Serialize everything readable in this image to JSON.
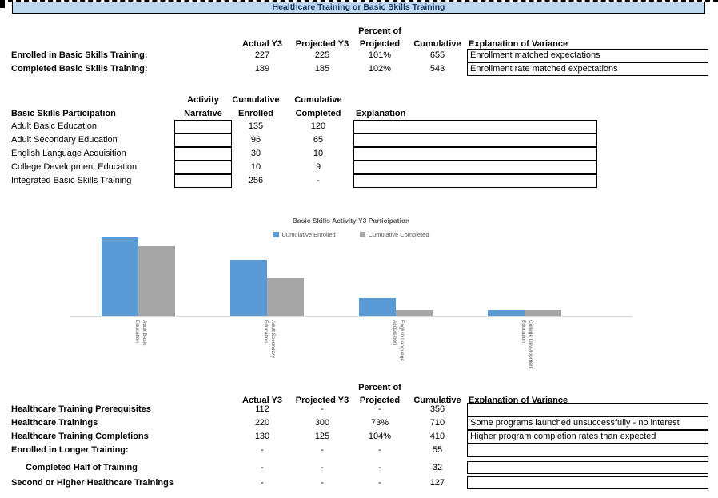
{
  "title_bar": {
    "text": "Healthcare Training or Basic Skills Training",
    "bg": "#BDD7EE",
    "text_color": "#17375E"
  },
  "top_table": {
    "headers": {
      "percent_line1": "Percent of",
      "actual": "Actual Y3",
      "projected": "Projected Y3",
      "percent_line2": "Projected",
      "cumulative": "Cumulative",
      "explanation": "Explanation of Variance"
    },
    "rows": [
      {
        "label": "Enrolled in Basic Skills Training:",
        "actual": "227",
        "projected": "225",
        "percent": "101%",
        "cumulative": "655",
        "explanation": "Enrollment matched expectations"
      },
      {
        "label": "Completed Basic Skills Training:",
        "actual": "189",
        "projected": "185",
        "percent": "102%",
        "cumulative": "543",
        "explanation": "Enrollment rate matched expectations"
      }
    ]
  },
  "participation_table": {
    "title": "Basic Skills Participation",
    "headers": {
      "activity1": "Activity",
      "activity2": "Narrative",
      "enrolled1": "Cumulative",
      "enrolled2": "Enrolled",
      "completed1": "Cumulative",
      "completed2": "Completed",
      "explanation": "Explanation"
    },
    "rows": [
      {
        "label": "Adult Basic Education",
        "narrative": "",
        "enrolled": "135",
        "completed": "120",
        "explanation": ""
      },
      {
        "label": "Adult Secondary Education",
        "narrative": "",
        "enrolled": "96",
        "completed": "65",
        "explanation": ""
      },
      {
        "label": "English Language Acquisition",
        "narrative": "",
        "enrolled": "30",
        "completed": "10",
        "explanation": ""
      },
      {
        "label": "College Development Education",
        "narrative": "",
        "enrolled": "10",
        "completed": "9",
        "explanation": ""
      },
      {
        "label": "Integrated Basic Skills Training",
        "narrative": "",
        "enrolled": "256",
        "completed": "-",
        "explanation": ""
      }
    ]
  },
  "chart_data": {
    "type": "bar",
    "title": "Basic Skills Activity Y3 Participation",
    "categories": [
      "Adult Basic Education",
      "Adult Secondary Education",
      "English Language Acquisition",
      "College Development Education"
    ],
    "category_label_lines": [
      [
        "Adult Basic",
        "Education"
      ],
      [
        "Adult Secondary",
        "Education"
      ],
      [
        "English Language",
        "Acquisition"
      ],
      [
        "College Development",
        "Education"
      ]
    ],
    "series": [
      {
        "name": "Cumulative Enrolled",
        "color": "#5B9BD5",
        "values": [
          135,
          96,
          30,
          10
        ]
      },
      {
        "name": "Cumulative Completed",
        "color": "#A6A6A6",
        "values": [
          120,
          65,
          10,
          9
        ]
      }
    ],
    "ylim": [
      0,
      140
    ],
    "grid": false,
    "legend_position": "top-center",
    "axis_line_color": "#D9D9D9",
    "text_color": "#595959"
  },
  "healthcare_table": {
    "headers": {
      "percent_line1": "Percent of",
      "actual": "Actual Y3",
      "projected": "Projected Y3",
      "percent_line2": "Projected",
      "cumulative": "Cumulative",
      "explanation": "Explanation of Variance"
    },
    "rows": [
      {
        "label": "Healthcare Training Prerequisites",
        "actual": "112",
        "projected": "-",
        "percent": "-",
        "cumulative": "356",
        "explanation": ""
      },
      {
        "label": "Healthcare Trainings",
        "actual": "220",
        "projected": "300",
        "percent": "73%",
        "cumulative": "710",
        "explanation": "Some programs launched unsuccessfully - no interest"
      },
      {
        "label": "Healthcare Training Completions",
        "actual": "130",
        "projected": "125",
        "percent": "104%",
        "cumulative": "410",
        "explanation": "Higher program completion rates than expected"
      },
      {
        "label": "Enrolled in Longer Training:",
        "actual": "-",
        "projected": "-",
        "percent": "-",
        "cumulative": "55",
        "explanation": ""
      },
      {
        "label": "Completed Half of Training",
        "actual": "-",
        "projected": "-",
        "percent": "-",
        "cumulative": "32",
        "explanation": ""
      },
      {
        "label": "Second or Higher Healthcare Trainings",
        "actual": "-",
        "projected": "-",
        "percent": "-",
        "cumulative": "127",
        "explanation": ""
      }
    ]
  }
}
